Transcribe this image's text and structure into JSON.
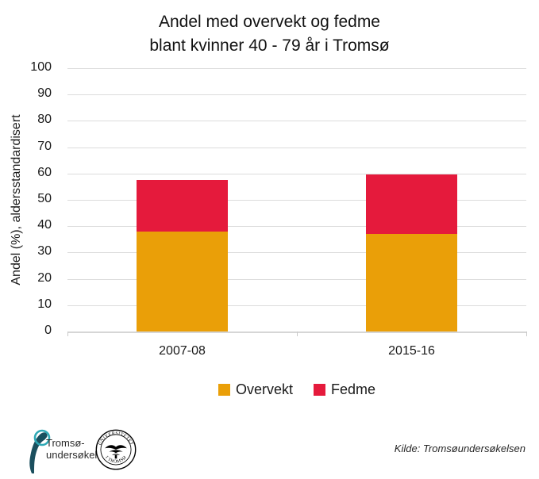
{
  "title": {
    "line1": "Andel med overvekt og fedme",
    "line2": "blant kvinner 40 - 79 år i Tromsø"
  },
  "chart_data": {
    "type": "bar",
    "stacked": true,
    "title": "Andel med overvekt og fedme blant kvinner 40 - 79 år i Tromsø",
    "categories": [
      "2007-08",
      "2015-16"
    ],
    "series": [
      {
        "name": "Overvekt",
        "color": "#EA9F08",
        "values": [
          38,
          37
        ]
      },
      {
        "name": "Fedme",
        "color": "#E51A3C",
        "values": [
          19.5,
          22.5
        ]
      }
    ],
    "xlabel": "",
    "ylabel": "Andel (%), aldersstandardisert",
    "ylim": [
      0,
      100
    ],
    "ytick_step": 10,
    "grid": true,
    "legend_position": "bottom"
  },
  "footer": {
    "source": "Kilde: Tromsøundersøkelsen",
    "logo_line1": "Tromsø-",
    "logo_line2": "undersøkelsen",
    "seal_text_top": "UNIVERSITETET",
    "seal_text_bottom": "I TROMSØ"
  },
  "colors": {
    "overvekt": "#EA9F08",
    "fedme": "#E51A3C",
    "gridline": "#DCDCDC",
    "axis_line": "#D6D6D6",
    "logo_teal": "#2FA9B6",
    "logo_dark": "#1B4F5E"
  }
}
